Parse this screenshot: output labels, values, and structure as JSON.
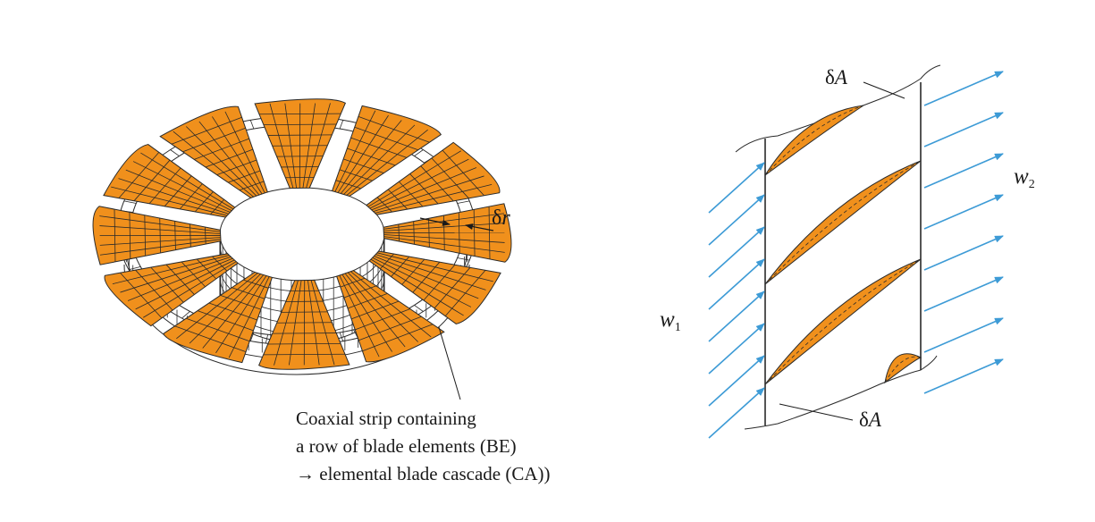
{
  "left_figure": {
    "delta_r": {
      "symbol": "δ",
      "var": "r"
    },
    "caption_lines": [
      "Coaxial strip containing",
      "a row of blade elements (BE)",
      "→ elemental blade cascade (CA))"
    ]
  },
  "right_figure": {
    "delta_a_top": {
      "symbol": "δ",
      "var": "A"
    },
    "delta_a_bottom": {
      "symbol": "δ",
      "var": "A"
    },
    "w1": {
      "var": "w",
      "sub": "1"
    },
    "w2": {
      "var": "w",
      "sub": "2"
    }
  },
  "colors": {
    "blade": "#f0901c",
    "arrow": "#3d9bd6",
    "line": "#2a2a2a"
  },
  "counts": {
    "rotor_blades": 12,
    "cascade_blades": 4
  }
}
